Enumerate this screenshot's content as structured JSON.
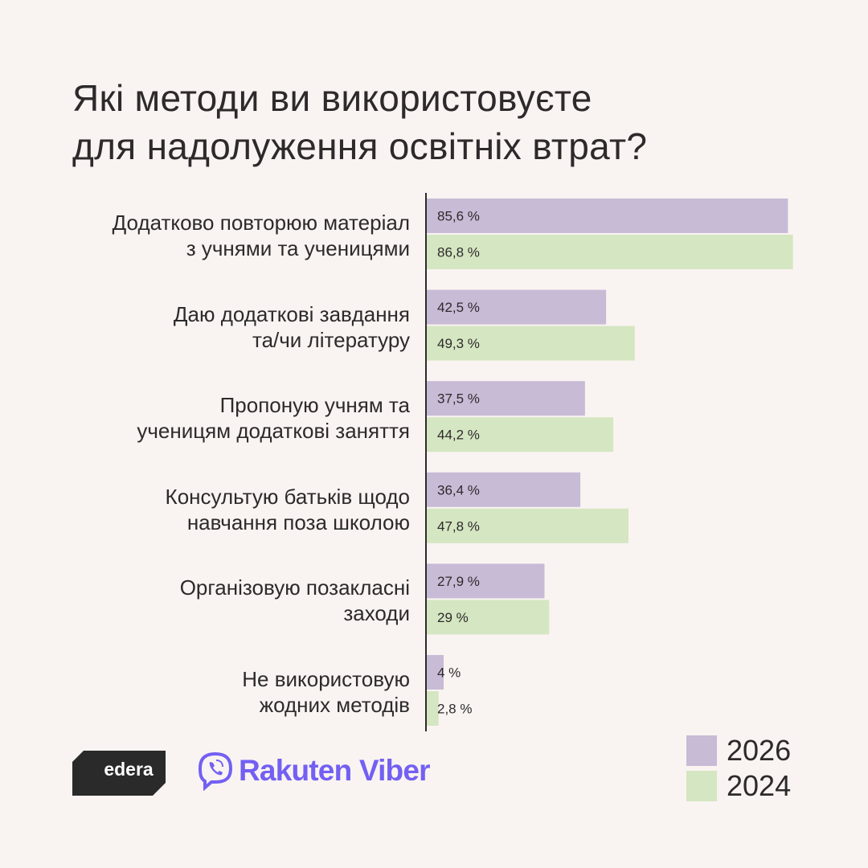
{
  "title_lines": [
    "Які методи ви використовуєте",
    "для надолуження освітніх втрат?"
  ],
  "colors": {
    "series_2026": "#c7bbd6",
    "series_2024": "#d5e6c2",
    "axis": "#2e2a2b",
    "background": "#f9f4f1",
    "viber": "#7360f2",
    "edera_bg": "#2a2a2a"
  },
  "chart_data": {
    "type": "bar",
    "orientation": "horizontal",
    "categories": [
      [
        "Додатково повторюю матеріал",
        "з учнями та учи ницями"
      ],
      [
        "Даю додаткові завдання",
        "та/чи літературу"
      ],
      [
        "Пропоную учням та",
        "учницям додаткові заняття"
      ],
      [
        "Консультую батьків щодо",
        "навчання поза школою"
      ],
      [
        "Організовую позакласні",
        "заходи"
      ],
      [
        "Не використовую",
        "жодних методів"
      ]
    ],
    "series": [
      {
        "name": "2026",
        "values": [
          85.6,
          42.5,
          37.5,
          36.4,
          27.9,
          4
        ],
        "labels": [
          "85,6 %",
          "42,5 %",
          "37,5 %",
          "36,4 %",
          "27,9 %",
          "4 %"
        ]
      },
      {
        "name": "2024",
        "values": [
          86.8,
          49.3,
          44.2,
          47.8,
          29,
          2.8
        ],
        "labels": [
          "86,8 %",
          "49,3 %",
          "44,2 %",
          "47,8 %",
          "29 %",
          "2,8 %"
        ]
      }
    ],
    "xlim": [
      0,
      100
    ],
    "legend": "bottom-right",
    "grid": false
  },
  "legend": [
    "2026",
    "2024"
  ],
  "logos": {
    "edera": "edera",
    "viber": "Rakuten Viber"
  }
}
